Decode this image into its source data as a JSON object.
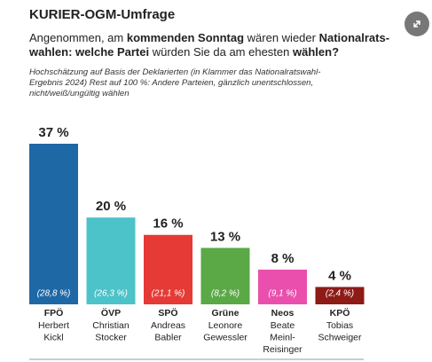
{
  "chart_data": {
    "type": "bar",
    "title": "KURIER-OGM-Umfrage",
    "subtitle_lines": [
      [
        {
          "text": "Angenommen, am ",
          "bold": false
        },
        {
          "text": "kommenden Sonntag",
          "bold": true
        },
        {
          "text": " wären wieder ",
          "bold": false
        },
        {
          "text": "Nationalrats-",
          "bold": true
        }
      ],
      [
        {
          "text": "wahlen: welche Partei",
          "bold": true
        },
        {
          "text": " würden Sie da am ehesten ",
          "bold": false
        },
        {
          "text": "wählen?",
          "bold": true
        }
      ]
    ],
    "note_lines": [
      "Hochschätzung auf Basis der Deklarierten (in Klammer das Nationalratswahl-",
      "Ergebnis 2024) Rest auf 100 %: Andere Parteien, gänzlich unentschlossen,",
      "nicht/weiß/ungültig wählen"
    ],
    "categories": [
      "FPÖ",
      "ÖVP",
      "SPÖ",
      "Grüne",
      "Neos",
      "KPÖ"
    ],
    "candidates": [
      [
        "Herbert",
        "Kickl"
      ],
      [
        "Christian",
        "Stocker"
      ],
      [
        "Andreas",
        "Babler"
      ],
      [
        "Leonore",
        "Gewessler"
      ],
      [
        "Beate",
        "Meinl-",
        "Reisinger"
      ],
      [
        "Tobias",
        "Schweiger"
      ]
    ],
    "values": [
      37,
      20,
      16,
      13,
      8,
      4
    ],
    "value_labels": [
      "37 %",
      "20 %",
      "16 %",
      "13 %",
      "8 %",
      "4 %"
    ],
    "previous_labels": [
      "(28,8 %)",
      "(26,3 %)",
      "(21,1 %)",
      "(8,2 %)",
      "(9,1 %)",
      "(2,4 %)"
    ],
    "colors": [
      "#1f68a6",
      "#4cc2c9",
      "#e63a36",
      "#5ba847",
      "#ea4fae",
      "#8e1b16"
    ]
  }
}
